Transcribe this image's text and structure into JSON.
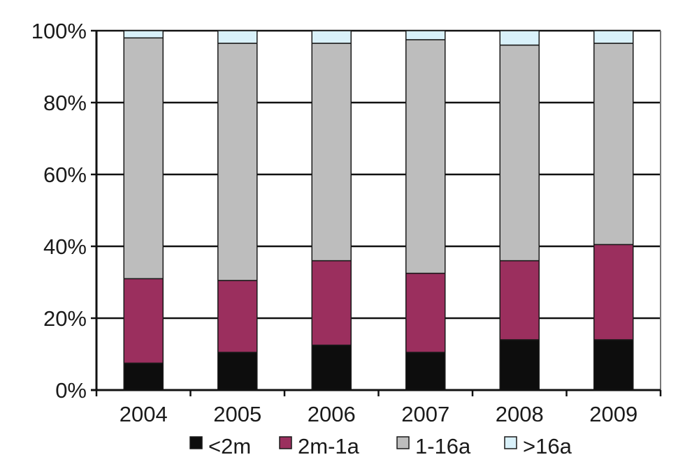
{
  "chart_data": {
    "type": "bar",
    "stacked": "percent",
    "title": "",
    "xlabel": "",
    "ylabel": "",
    "categories": [
      "2004",
      "2005",
      "2006",
      "2007",
      "2008",
      "2009"
    ],
    "series": [
      {
        "name": "<2m",
        "color": "#0d0d0d",
        "values": [
          7.5,
          10.5,
          12.5,
          10.5,
          14,
          14
        ]
      },
      {
        "name": "2m-1a",
        "color": "#9b2f5e",
        "values": [
          23.5,
          20,
          23.5,
          22,
          22,
          26.5
        ]
      },
      {
        "name": "1-16a",
        "color": "#bdbdbd",
        "values": [
          67,
          66,
          60.5,
          65,
          60,
          56
        ]
      },
      {
        "name": ">16a",
        "color": "#d9f1fa",
        "values": [
          2,
          3.5,
          3.5,
          2.5,
          4,
          3.5
        ]
      }
    ],
    "y_ticks": [
      "0%",
      "20%",
      "40%",
      "60%",
      "80%",
      "100%"
    ],
    "ylim": [
      0,
      100
    ],
    "grid": true,
    "legend": "bottom"
  }
}
